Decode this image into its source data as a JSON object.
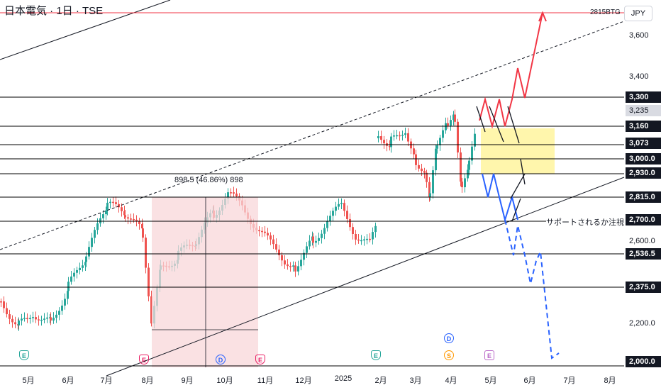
{
  "header": {
    "symbol_line": "日本電気 · 1日 · TSE",
    "currency": "JPY"
  },
  "trendline_label": "2815BTG",
  "price_axis": [
    "3,600",
    "3,400",
    "2,600.0",
    "2,200.0"
  ],
  "level_labels": [
    "3,300",
    "3,235",
    "3,160",
    "3,073",
    "3,000.0",
    "2,930.0",
    "2,815.0",
    "2,700.0",
    "2,536.5",
    "2,375.0",
    "2,000.0"
  ],
  "months": [
    "5月",
    "6月",
    "7月",
    "8月",
    "9月",
    "10月",
    "11月",
    "12月",
    "2025",
    "2月",
    "3月",
    "4月",
    "5月",
    "6月",
    "7月",
    "8月"
  ],
  "measure_text": "898.5 (46.86%) 898",
  "annotation": "サポートされるか注視",
  "events": [
    "E",
    "E",
    "D",
    "E",
    "E",
    "D",
    "S",
    "E"
  ],
  "colors": {
    "up": "#26a69a",
    "down": "#ef5350",
    "level_line": "#000000",
    "red_path": "#f23645",
    "blue_path": "#2962ff",
    "zone": "#fff59d",
    "range_box": "#f8d7da"
  }
}
